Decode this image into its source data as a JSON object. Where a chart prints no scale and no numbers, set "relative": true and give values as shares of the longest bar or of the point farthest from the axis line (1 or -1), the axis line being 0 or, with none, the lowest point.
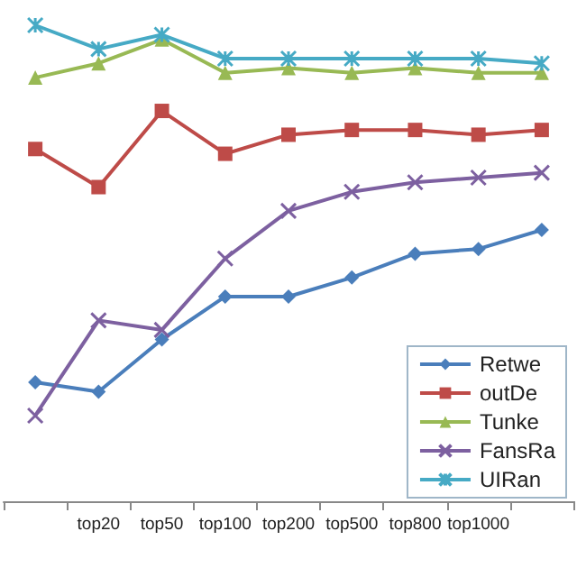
{
  "chart_data": {
    "type": "line",
    "relative": true,
    "categories": [
      null,
      "top20",
      "top50",
      "top100",
      "top200",
      "top500",
      "top800",
      "top1000",
      null
    ],
    "legend": "bottom right",
    "grid": false,
    "series": [
      {
        "name": "Retwe",
        "color": "#4a7ebb",
        "marker": "diamond",
        "values": [
          0.25,
          0.23,
          0.34,
          0.43,
          0.43,
          0.47,
          0.52,
          0.53,
          0.57
        ]
      },
      {
        "name": "outDe",
        "color": "#be4b48",
        "marker": "square",
        "values": [
          0.74,
          0.66,
          0.82,
          0.73,
          0.77,
          0.78,
          0.78,
          0.77,
          0.78
        ]
      },
      {
        "name": "Tunke",
        "color": "#98b954",
        "marker": "triangle",
        "values": [
          0.89,
          0.92,
          0.97,
          0.9,
          0.91,
          0.9,
          0.91,
          0.9,
          0.9
        ]
      },
      {
        "name": "FansRa",
        "color": "#7d60a0",
        "marker": "cross",
        "values": [
          0.18,
          0.38,
          0.36,
          0.51,
          0.61,
          0.65,
          0.67,
          0.68,
          0.69
        ]
      },
      {
        "name": "UIRan",
        "color": "#46aac5",
        "marker": "star",
        "values": [
          1,
          0.95,
          0.98,
          0.93,
          0.93,
          0.93,
          0.93,
          0.93,
          0.92
        ]
      }
    ]
  }
}
